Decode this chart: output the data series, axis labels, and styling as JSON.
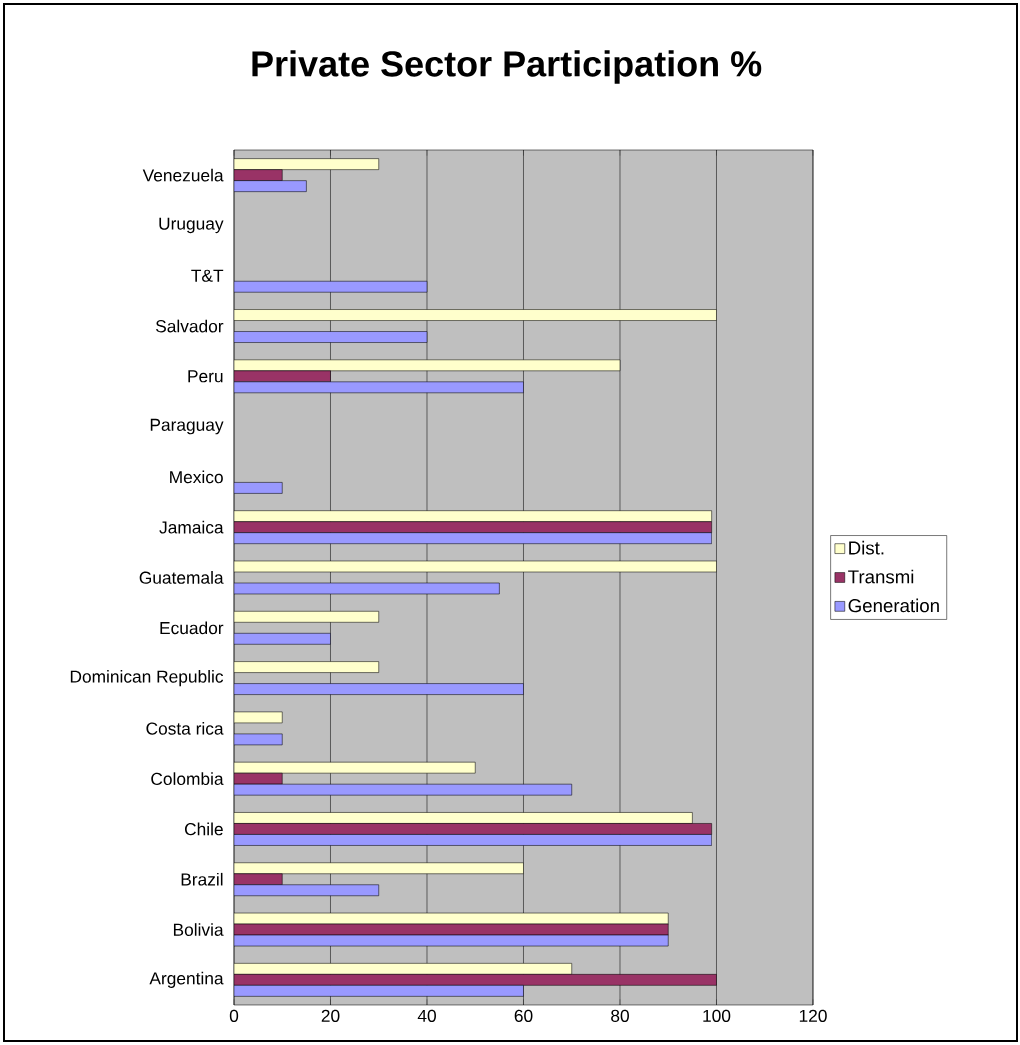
{
  "chart_data": {
    "type": "bar",
    "orientation": "horizontal",
    "title": "Private Sector Participation %",
    "categories": [
      "Venezuela",
      "Uruguay",
      "T&T",
      "Salvador",
      "Peru",
      "Paraguay",
      "Mexico",
      "Jamaica",
      "Guatemala",
      "Ecuador",
      "Dominican Republic",
      "Costa rica",
      "Colombia",
      "Chile",
      "Brazil",
      "Bolivia",
      "Argentina"
    ],
    "series": [
      {
        "name": "Dist.",
        "color": "#ffffcc",
        "values": [
          30,
          null,
          null,
          100,
          80,
          null,
          null,
          99,
          100,
          30,
          30,
          10,
          50,
          95,
          60,
          90,
          70
        ]
      },
      {
        "name": "Transmi",
        "color": "#993366",
        "values": [
          10,
          null,
          null,
          null,
          20,
          null,
          null,
          99,
          null,
          null,
          null,
          null,
          10,
          99,
          10,
          90,
          100
        ]
      },
      {
        "name": "Generation",
        "color": "#9999ff",
        "values": [
          15,
          null,
          40,
          40,
          60,
          null,
          10,
          99,
          55,
          20,
          60,
          10,
          70,
          99,
          30,
          90,
          60
        ]
      }
    ],
    "xlim": [
      0,
      120
    ],
    "xticks": [
      0,
      20,
      40,
      60,
      80,
      100,
      120
    ],
    "grid": "x",
    "legend": "right"
  }
}
